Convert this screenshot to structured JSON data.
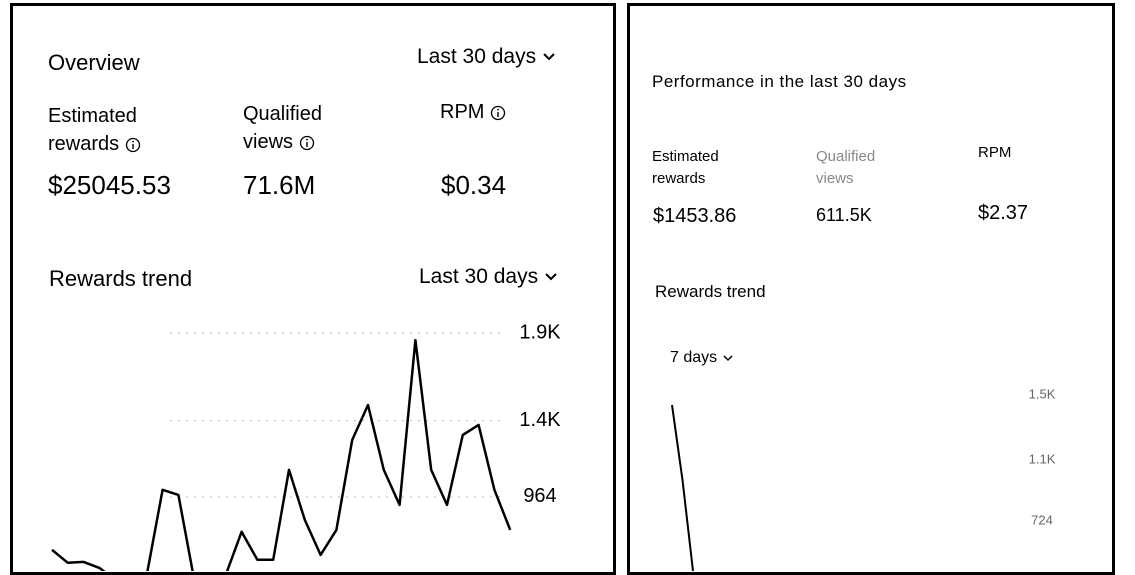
{
  "panels": [
    {
      "title": "Overview",
      "range": "Last 30 days",
      "metrics": [
        {
          "label": "Estimated rewards",
          "value": "$25045.53"
        },
        {
          "label": "Qualified views",
          "value": "71.6M"
        },
        {
          "label": "RPM",
          "value": "$0.34"
        }
      ],
      "trend_title": "Rewards trend",
      "trend_range": "Last 30 days"
    },
    {
      "title": "Performance in the last 30 days",
      "metrics": [
        {
          "label": "Estimated rewards",
          "value": "$1453.86"
        },
        {
          "label": "Qualified views",
          "value": "611.5K"
        },
        {
          "label": "RPM",
          "value": "$2.37"
        }
      ],
      "trend_title": "Rewards trend",
      "trend_range": "7 days"
    }
  ],
  "chart_data": [
    {
      "type": "line",
      "color": "#000000",
      "grid": true,
      "categories": [
        null,
        null,
        null,
        null,
        null,
        null,
        null,
        null,
        null,
        null,
        null,
        null,
        null,
        null,
        null,
        null,
        null,
        null,
        null,
        null,
        null,
        null,
        null,
        null,
        null,
        null,
        null,
        null,
        null,
        null
      ],
      "values": [
        661,
        587,
        592,
        558,
        490,
        433,
        518,
        1004,
        975,
        490,
        433,
        518,
        764,
        604,
        604,
        1118,
        832,
        632,
        775,
        1289,
        1489,
        1118,
        918,
        1860,
        1118,
        918,
        1318,
        1375,
        1004,
        775
      ],
      "ylim": [
        540,
        1975
      ],
      "yticks": [
        {
          "value": 1900,
          "label": "1.9K"
        },
        {
          "value": 1400,
          "label": "1.4K"
        },
        964
      ]
    },
    {
      "type": "line",
      "color": "#000000",
      "grid": false,
      "categories": [
        null,
        null,
        null
      ],
      "values": [
        1438,
        977,
        417
      ],
      "ylim": [
        417,
        1592
      ],
      "yticks": [
        {
          "value": 1500,
          "label": "1.5K"
        },
        {
          "value": 1100,
          "label": "1.1K"
        },
        724
      ]
    }
  ]
}
